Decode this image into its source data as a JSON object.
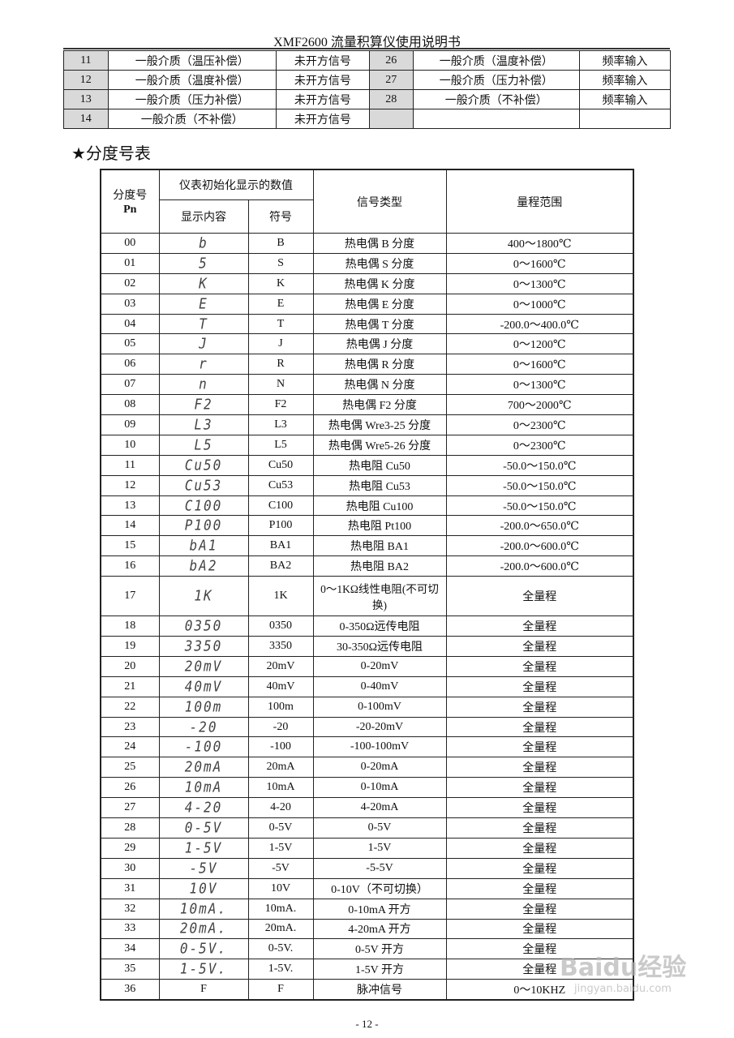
{
  "header": {
    "title": "XMF2600 流量积算仪使用说明书"
  },
  "top_table": [
    [
      "11",
      "一般介质（温压补偿）",
      "未开方信号",
      "26",
      "一般介质（温度补偿）",
      "频率输入"
    ],
    [
      "12",
      "一般介质（温度补偿）",
      "未开方信号",
      "27",
      "一般介质（压力补偿）",
      "频率输入"
    ],
    [
      "13",
      "一般介质（压力补偿）",
      "未开方信号",
      "28",
      "一般介质（不补偿）",
      "频率输入"
    ],
    [
      "14",
      "一般介质（不补偿）",
      "未开方信号",
      "",
      "",
      ""
    ]
  ],
  "section_title": "★分度号表",
  "main_table": {
    "headers": {
      "pn": "分度号",
      "pn2": "Pn",
      "init": "仪表初始化显示的数值",
      "display": "显示内容",
      "symbol": "符号",
      "signal": "信号类型",
      "range": "量程范围"
    },
    "rows": [
      [
        "00",
        "b",
        "B",
        "热电偶 B 分度",
        "400～1800℃"
      ],
      [
        "01",
        "5",
        "S",
        "热电偶 S 分度",
        "0～1600℃"
      ],
      [
        "02",
        "K",
        "K",
        "热电偶 K 分度",
        "0～1300℃"
      ],
      [
        "03",
        "E",
        "E",
        "热电偶 E 分度",
        "0～1000℃"
      ],
      [
        "04",
        "T",
        "T",
        "热电偶 T 分度",
        "-200.0～400.0℃"
      ],
      [
        "05",
        "J",
        "J",
        "热电偶 J 分度",
        "0～1200℃"
      ],
      [
        "06",
        "r",
        "R",
        "热电偶 R 分度",
        "0～1600℃"
      ],
      [
        "07",
        "n",
        "N",
        "热电偶 N 分度",
        "0～1300℃"
      ],
      [
        "08",
        "F2",
        "F2",
        "热电偶 F2 分度",
        "700～2000℃"
      ],
      [
        "09",
        "L3",
        "L3",
        "热电偶 Wre3-25 分度",
        "0～2300℃"
      ],
      [
        "10",
        "L5",
        "L5",
        "热电偶 Wre5-26 分度",
        "0～2300℃"
      ],
      [
        "11",
        "Cu50",
        "Cu50",
        "热电阻 Cu50",
        "-50.0～150.0℃"
      ],
      [
        "12",
        "Cu53",
        "Cu53",
        "热电阻 Cu53",
        "-50.0～150.0℃"
      ],
      [
        "13",
        "C100",
        "C100",
        "热电阻 Cu100",
        "-50.0～150.0℃"
      ],
      [
        "14",
        "P100",
        "P100",
        "热电阻 Pt100",
        "-200.0～650.0℃"
      ],
      [
        "15",
        "bA1",
        "BA1",
        "热电阻 BA1",
        "-200.0～600.0℃"
      ],
      [
        "16",
        "bA2",
        "BA2",
        "热电阻 BA2",
        "-200.0～600.0℃"
      ],
      [
        "17",
        "1K",
        "1K",
        "0～1KΩ线性电阻(不可切换)",
        "全量程"
      ],
      [
        "18",
        "0350",
        "0350",
        "0-350Ω远传电阻",
        "全量程"
      ],
      [
        "19",
        "3350",
        "3350",
        "30-350Ω远传电阻",
        "全量程"
      ],
      [
        "20",
        "20mV",
        "20mV",
        "0-20mV",
        "全量程"
      ],
      [
        "21",
        "40mV",
        "40mV",
        "0-40mV",
        "全量程"
      ],
      [
        "22",
        "100m",
        "100m",
        "0-100mV",
        "全量程"
      ],
      [
        "23",
        "-20",
        "-20",
        "-20-20mV",
        "全量程"
      ],
      [
        "24",
        "-100",
        "-100",
        "-100-100mV",
        "全量程"
      ],
      [
        "25",
        "20mA",
        "20mA",
        "0-20mA",
        "全量程"
      ],
      [
        "26",
        "10mA",
        "10mA",
        "0-10mA",
        "全量程"
      ],
      [
        "27",
        "4-20",
        "4-20",
        "4-20mA",
        "全量程"
      ],
      [
        "28",
        "0-5V",
        "0-5V",
        "0-5V",
        "全量程"
      ],
      [
        "29",
        "1-5V",
        "1-5V",
        "1-5V",
        "全量程"
      ],
      [
        "30",
        "-5V",
        "-5V",
        "-5-5V",
        "全量程"
      ],
      [
        "31",
        "10V",
        "10V",
        "0-10V（不可切换）",
        "全量程"
      ],
      [
        "32",
        "10mA.",
        "10mA.",
        "0-10mA 开方",
        "全量程"
      ],
      [
        "33",
        "20mA.",
        "20mA.",
        "4-20mA 开方",
        "全量程"
      ],
      [
        "34",
        "0-5V.",
        "0-5V.",
        "0-5V 开方",
        "全量程"
      ],
      [
        "35",
        "1-5V.",
        "1-5V.",
        "1-5V 开方",
        "全量程"
      ],
      [
        "36",
        "F",
        "F",
        "脉冲信号",
        "0～10KHZ"
      ]
    ]
  },
  "footer": {
    "page": "- 12 -"
  },
  "watermark": {
    "brand": "Baidu经验",
    "url": "jingyan.baidu.com"
  }
}
